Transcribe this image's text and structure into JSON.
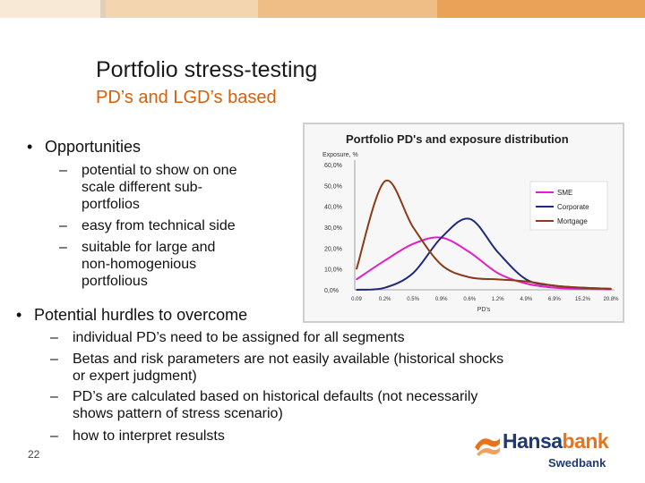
{
  "slide": {
    "title": "Portfolio stress-testing",
    "subtitle": "PD’s and LGD’s based",
    "page_number": "22",
    "accent": "#d4600a"
  },
  "opportunities": {
    "heading": "Opportunities",
    "items": [
      {
        "label": "potential to show on one scale different sub-portfolios",
        "lines": [
          "potential to show on one",
          "scale different sub-",
          "portfolios"
        ]
      },
      {
        "label": "easy from technical side",
        "lines": [
          "easy from technical side"
        ]
      },
      {
        "label": "suitable for large and non-homogenious portfolious",
        "lines": [
          "suitable for large and",
          "non-homogenious",
          "portfolious"
        ]
      }
    ]
  },
  "hurdles": {
    "heading": "Potential hurdles to overcome",
    "items": [
      {
        "lines": [
          "individual PD’s need to be assigned for all segments"
        ]
      },
      {
        "lines": [
          "Betas and risk parameters are not easily available (historical shocks",
          "or expert judgment)"
        ]
      },
      {
        "lines": [
          "PD’s are calculated based on historical defaults (not necessarily",
          "shows pattern of stress scenario)"
        ]
      },
      {
        "lines": [
          "how to interpret resulsts"
        ]
      }
    ]
  },
  "logo": {
    "brand_a": "Hansa",
    "brand_b": "bank",
    "sub": "Swedbank"
  },
  "chart_data": {
    "type": "line",
    "title": "Portfolio PD's and exposure distribution",
    "ylabel": "Exposure, %",
    "xlabel": "PD's",
    "ylim": [
      0,
      60
    ],
    "yticks": [
      "60,0%",
      "50,0%",
      "40,0%",
      "30,0%",
      "20,0%",
      "10,0%",
      "0,0%"
    ],
    "categories": [
      "0.09",
      "0.2%",
      "0.5%",
      "0.9%",
      "0.6%",
      "1.2%",
      "4.9%",
      "6.9%",
      "15.2%",
      "20.8%"
    ],
    "legend_position": "right",
    "series": [
      {
        "name": "SME",
        "color": "#e020c8",
        "values": [
          5,
          14,
          22,
          25,
          18,
          8,
          3,
          1,
          0.5,
          0.2
        ]
      },
      {
        "name": "Corporate",
        "color": "#1e2a78",
        "values": [
          0,
          1,
          8,
          25,
          34,
          18,
          5,
          2,
          1,
          0.5
        ]
      },
      {
        "name": "Mortgage",
        "color": "#8b3a1a",
        "values": [
          10,
          52,
          30,
          12,
          6,
          5,
          4,
          2,
          1,
          0.5
        ]
      }
    ]
  }
}
